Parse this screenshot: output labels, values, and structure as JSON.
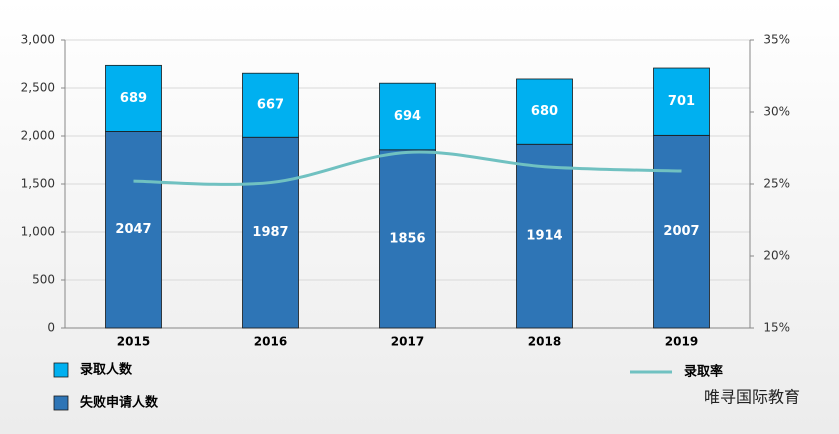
{
  "chart_data": {
    "type": "bar",
    "categories": [
      "2015",
      "2016",
      "2017",
      "2018",
      "2019"
    ],
    "series": [
      {
        "name": "失败申请人数",
        "color": "#2E75B6",
        "values": [
          2047,
          1987,
          1856,
          1914,
          2007
        ]
      },
      {
        "name": "录取人数",
        "color": "#00B0F0",
        "values": [
          689,
          667,
          694,
          680,
          701
        ]
      },
      {
        "name": "录取率",
        "color": "#70C1C1",
        "type": "line",
        "axis": "y2",
        "values": [
          25.2,
          25.1,
          27.2,
          26.2,
          25.9
        ]
      }
    ],
    "stacked": true,
    "ylim": [
      0,
      3000
    ],
    "yticks": [
      0,
      500,
      {
        "value": 1000,
        "label": "1,000"
      },
      {
        "value": 1500,
        "label": "1,500"
      },
      {
        "value": 2000,
        "label": "2,000"
      },
      {
        "value": 2500,
        "label": "2,500"
      },
      {
        "value": 3000,
        "label": "3,000"
      }
    ],
    "y2lim": [
      15,
      35
    ],
    "y2ticks": [
      {
        "value": 15,
        "label": "15%"
      },
      {
        "value": 20,
        "label": "20%"
      },
      {
        "value": 25,
        "label": "25%"
      },
      {
        "value": 30,
        "label": "30%"
      },
      {
        "value": 35,
        "label": "35%"
      }
    ],
    "grid": true,
    "legend": "bottom",
    "credit": "唯寻国际教育"
  }
}
